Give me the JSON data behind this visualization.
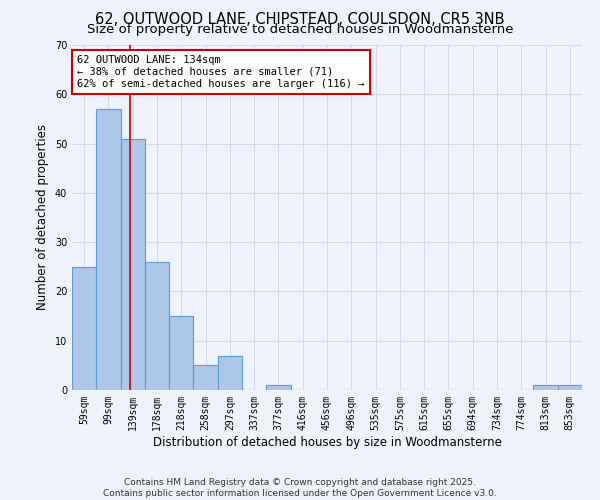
{
  "title": "62, OUTWOOD LANE, CHIPSTEAD, COULSDON, CR5 3NB",
  "subtitle": "Size of property relative to detached houses in Woodmansterne",
  "xlabel": "Distribution of detached houses by size in Woodmansterne",
  "ylabel": "Number of detached properties",
  "bin_labels": [
    "59sqm",
    "99sqm",
    "139sqm",
    "178sqm",
    "218sqm",
    "258sqm",
    "297sqm",
    "337sqm",
    "377sqm",
    "416sqm",
    "456sqm",
    "496sqm",
    "535sqm",
    "575sqm",
    "615sqm",
    "655sqm",
    "694sqm",
    "734sqm",
    "774sqm",
    "813sqm",
    "853sqm"
  ],
  "bar_values": [
    25,
    57,
    51,
    26,
    15,
    5,
    7,
    0,
    1,
    0,
    0,
    0,
    0,
    0,
    0,
    0,
    0,
    0,
    0,
    1,
    1
  ],
  "bar_color": "#aec6e8",
  "bar_edge_color": "#5a9fd4",
  "background_color": "#eef2fb",
  "grid_color": "#d0d8ee",
  "red_line_x": 1.88,
  "annotation_text": "62 OUTWOOD LANE: 134sqm\n← 38% of detached houses are smaller (71)\n62% of semi-detached houses are larger (116) →",
  "annotation_box_color": "#ffffff",
  "annotation_box_edge": "#cc0000",
  "footer_line1": "Contains HM Land Registry data © Crown copyright and database right 2025.",
  "footer_line2": "Contains public sector information licensed under the Open Government Licence v3.0.",
  "ylim": [
    0,
    70
  ],
  "yticks": [
    0,
    10,
    20,
    30,
    40,
    50,
    60,
    70
  ],
  "title_fontsize": 10.5,
  "subtitle_fontsize": 9.5,
  "axis_label_fontsize": 8.5,
  "tick_fontsize": 7,
  "footer_fontsize": 6.5,
  "annotation_fontsize": 7.5
}
